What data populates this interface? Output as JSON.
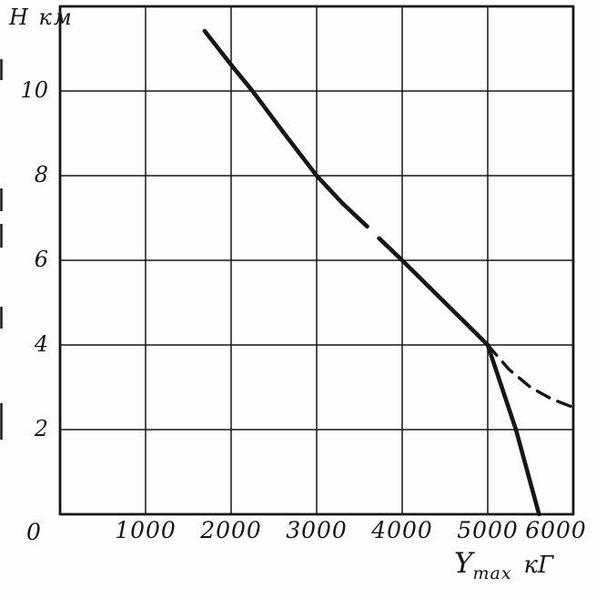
{
  "figure": {
    "kind": "scanned-book-line-chart",
    "background_color": "#fdfdfb",
    "ink_color": "#161616"
  },
  "chart_data": {
    "type": "line",
    "title": "",
    "ylabel": "Н км",
    "xlabel": "Ymax кГ",
    "xlabel_parts": {
      "main": "Y",
      "sub": "max",
      "unit": "кГ"
    },
    "origin_label": "0",
    "xlim": [
      0,
      6000
    ],
    "ylim": [
      0,
      12
    ],
    "grid": true,
    "x_ticks": [
      0,
      1000,
      2000,
      3000,
      4000,
      5000,
      6000
    ],
    "x_tick_labels": [
      "1000",
      "2000",
      "3000",
      "4000",
      "5000",
      "6000"
    ],
    "y_ticks": [
      0,
      2,
      4,
      6,
      8,
      10,
      12
    ],
    "y_tick_labels": [
      "2",
      "4",
      "6",
      "8",
      "10"
    ],
    "legend_position": "none",
    "series": [
      {
        "name": "ceiling-curve-upper-solid",
        "style": "solid",
        "points": [
          [
            1690,
            11.42
          ],
          [
            2000,
            10.62
          ],
          [
            2250,
            10.0
          ],
          [
            2620,
            9.0
          ],
          [
            3000,
            8.0
          ],
          [
            3300,
            7.35
          ],
          [
            3590,
            6.8
          ]
        ]
      },
      {
        "name": "ceiling-curve-lower-solid",
        "style": "solid",
        "points": [
          [
            3730,
            6.52
          ],
          [
            4000,
            6.0
          ],
          [
            4500,
            5.0
          ],
          [
            5000,
            4.0
          ]
        ]
      },
      {
        "name": "steep-descent-solid",
        "style": "solid",
        "points": [
          [
            5000,
            4.0
          ],
          [
            5330,
            2.0
          ],
          [
            5600,
            0.0
          ]
        ]
      },
      {
        "name": "extension-dashed",
        "style": "dashed",
        "points": [
          [
            5000,
            4.0
          ],
          [
            5250,
            3.42
          ],
          [
            5500,
            3.0
          ],
          [
            5750,
            2.72
          ],
          [
            5970,
            2.55
          ]
        ]
      }
    ]
  }
}
